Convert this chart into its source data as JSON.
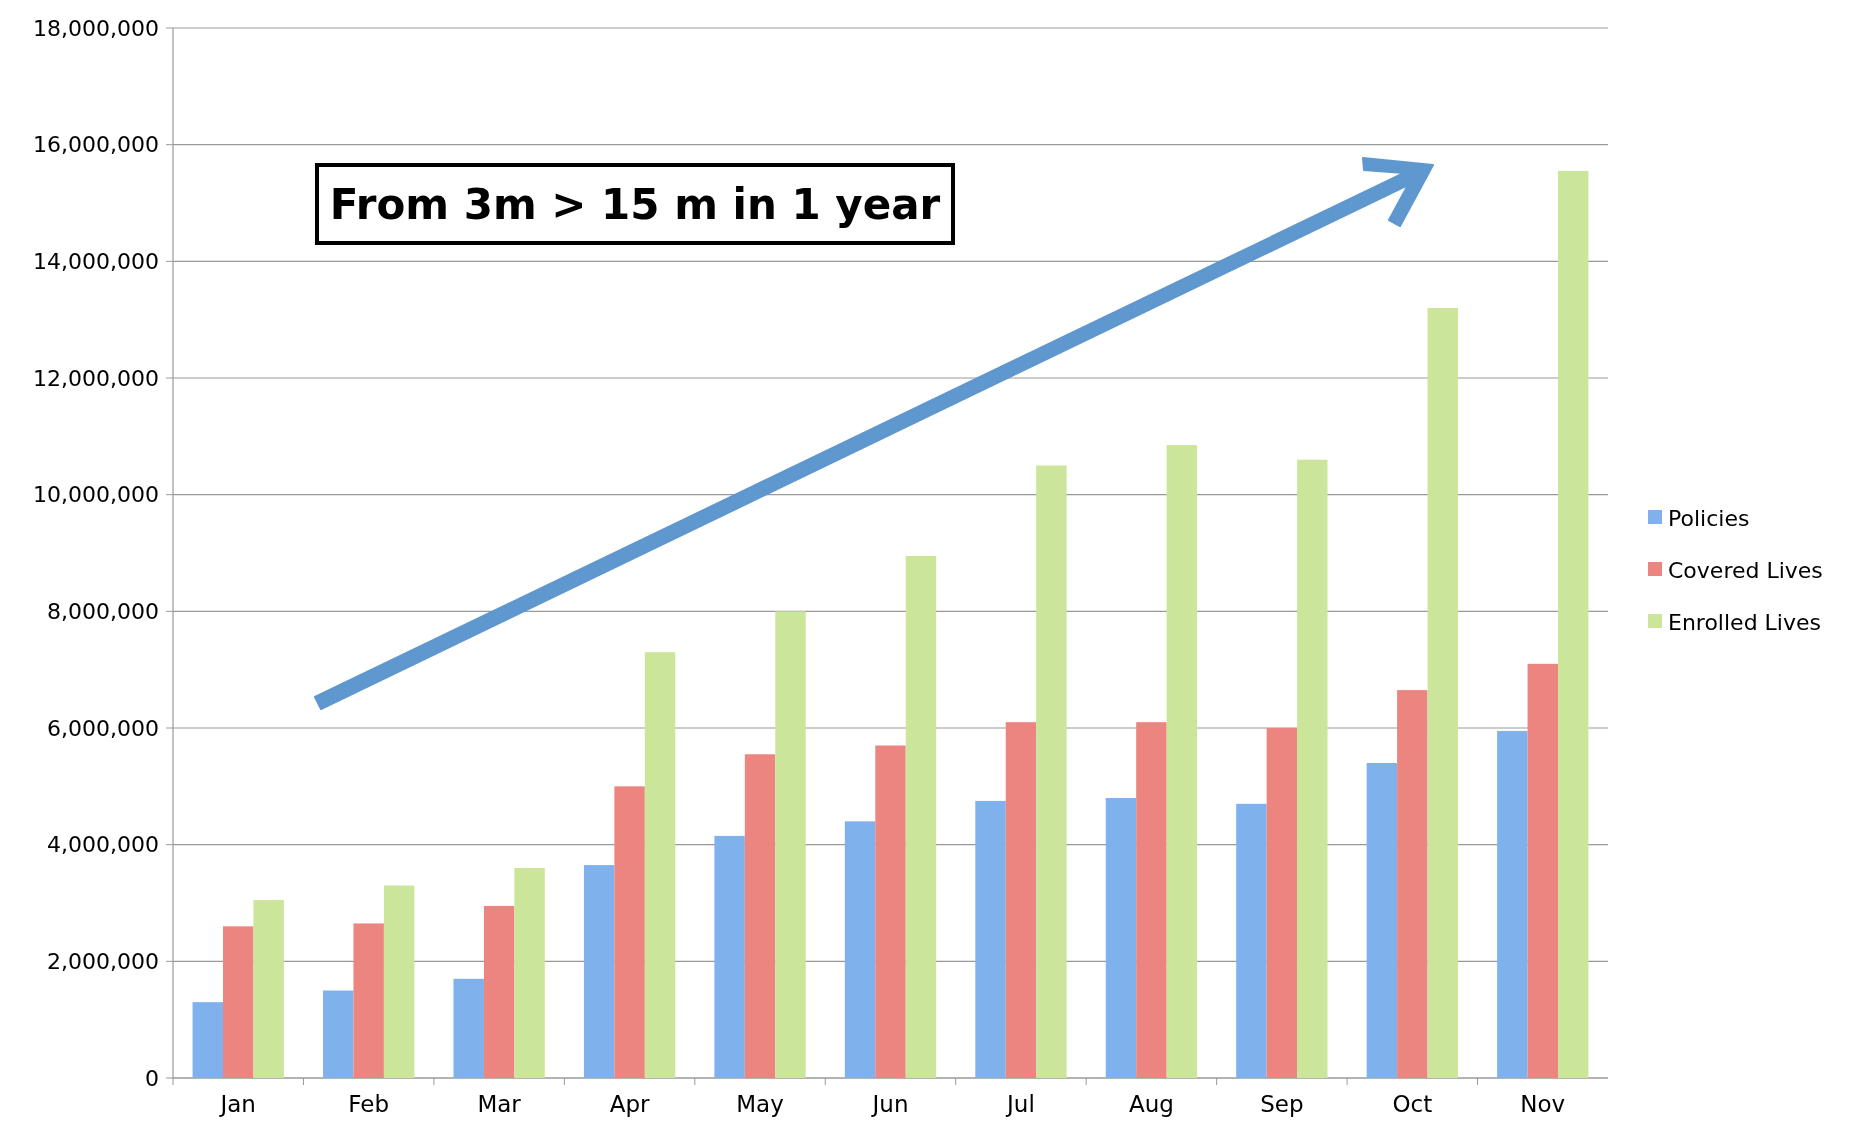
{
  "chart_data": {
    "type": "bar",
    "categories": [
      "Jan",
      "Feb",
      "Mar",
      "Apr",
      "May",
      "Jun",
      "Jul",
      "Aug",
      "Sep",
      "Oct",
      "Nov"
    ],
    "series": [
      {
        "name": "Policies",
        "color": "#7fb2ec",
        "values": [
          1300000,
          1500000,
          1700000,
          3650000,
          4150000,
          4400000,
          4750000,
          4800000,
          4700000,
          5400000,
          5950000
        ]
      },
      {
        "name": "Covered Lives",
        "color": "#ec8580",
        "values": [
          2600000,
          2650000,
          2950000,
          5000000,
          5550000,
          5700000,
          6100000,
          6100000,
          6000000,
          6650000,
          7100000
        ]
      },
      {
        "name": "Enrolled Lives",
        "color": "#cbe69a",
        "values": [
          3050000,
          3300000,
          3600000,
          7300000,
          8000000,
          8950000,
          10500000,
          10850000,
          10600000,
          13200000,
          15550000
        ]
      }
    ],
    "ylim": [
      0,
      18000000
    ],
    "yticks": [
      0,
      {
        "value": 2000000,
        "label": "2,000,000"
      },
      {
        "value": 4000000,
        "label": "4,000,000"
      },
      {
        "value": 6000000,
        "label": "6,000,000"
      },
      {
        "value": 8000000,
        "label": "8,000,000"
      },
      {
        "value": 10000000,
        "label": "10,000,000"
      },
      {
        "value": 12000000,
        "label": "12,000,000"
      },
      {
        "value": 14000000,
        "label": "14,000,000"
      },
      {
        "value": 16000000,
        "label": "16,000,000"
      },
      {
        "value": 18000000,
        "label": "18,000,000"
      }
    ],
    "grid": "y",
    "legend": "right",
    "annotations": [
      "From 3m > 15 m in 1 year"
    ]
  }
}
